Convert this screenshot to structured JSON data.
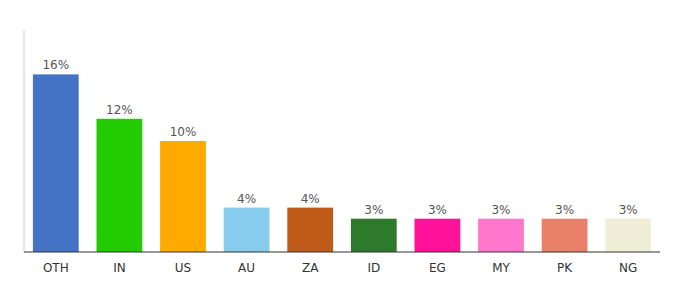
{
  "chart_data": {
    "type": "bar",
    "categories": [
      "OTH",
      "IN",
      "US",
      "AU",
      "ZA",
      "ID",
      "EG",
      "MY",
      "PK",
      "NG"
    ],
    "values": [
      16,
      12,
      10,
      4,
      4,
      3,
      3,
      3,
      3,
      3
    ],
    "value_labels": [
      "16%",
      "12%",
      "10%",
      "4%",
      "4%",
      "3%",
      "3%",
      "3%",
      "3%",
      "3%"
    ],
    "colors": [
      "#4472c4",
      "#22cc00",
      "#ffaa00",
      "#88ccee",
      "#c05a18",
      "#2d7a2d",
      "#ff1199",
      "#ff77cc",
      "#e8806a",
      "#f0edd8"
    ],
    "data_labels": true,
    "ylim": [
      0,
      20
    ],
    "grid": false,
    "tick_labels": "x"
  }
}
